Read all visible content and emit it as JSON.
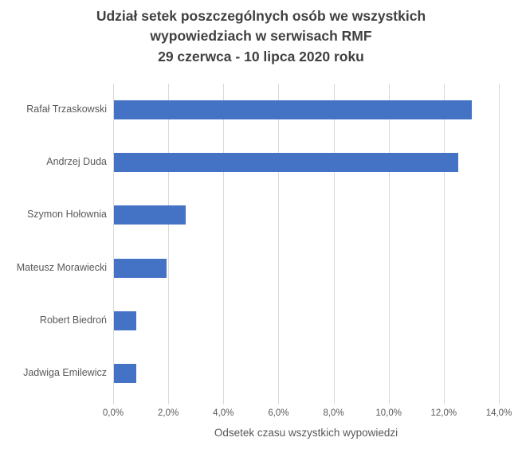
{
  "chart_data": {
    "type": "bar",
    "orientation": "horizontal",
    "title": "Udział setek poszczególnych osób we wszystkich wypowiedziach w serwisach RMF 29 czerwca - 10 lipca 2020 roku",
    "title_lines": [
      "Udział setek poszczególnych osób we wszystkich",
      "wypowiedziach w serwisach RMF",
      "29 czerwca - 10 lipca 2020 roku"
    ],
    "categories": [
      "Rafał Trzaskowski",
      "Andrzej Duda",
      "Szymon Hołownia",
      "Mateusz Morawiecki",
      "Robert Biedroń",
      "Jadwiga Emilewicz"
    ],
    "values": [
      13.0,
      12.5,
      2.6,
      1.9,
      0.8,
      0.8
    ],
    "xlabel": "Odsetek czasu wszystkich wypowiedzi",
    "ylabel": "",
    "x_ticks": [
      "0,0%",
      "2,0%",
      "4,0%",
      "6,0%",
      "8,0%",
      "10,0%",
      "12,0%",
      "14,0%"
    ],
    "xlim": [
      0,
      14
    ],
    "grid": true,
    "legend": false,
    "colors": {
      "bar": "#4472C4",
      "grid": "#D9D9D9",
      "title_text": "#404040",
      "label_text": "#595959"
    }
  }
}
